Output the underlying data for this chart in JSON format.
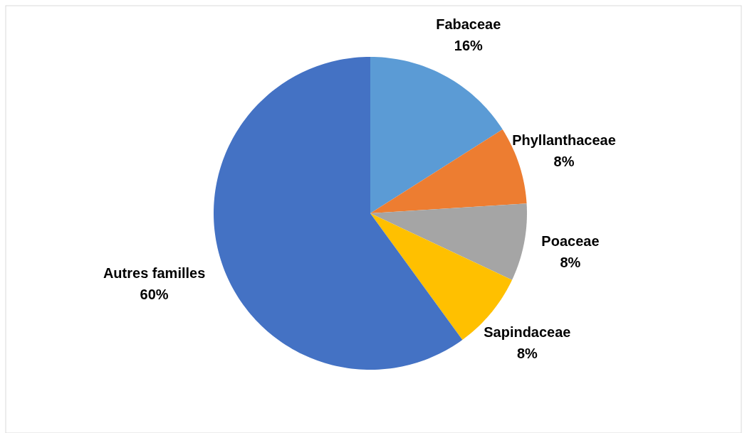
{
  "chart_data": {
    "type": "pie",
    "categories": [
      "Fabaceae",
      "Phyllanthaceae",
      "Poaceae",
      "Sapindaceae",
      "Autres familles"
    ],
    "values": [
      16,
      8,
      8,
      8,
      60
    ],
    "value_labels": [
      "16%",
      "8%",
      "8%",
      "8%",
      "60%"
    ],
    "colors": [
      "#5b9bd5",
      "#ed7d31",
      "#a5a5a5",
      "#ffc000",
      "#4472c4"
    ]
  }
}
